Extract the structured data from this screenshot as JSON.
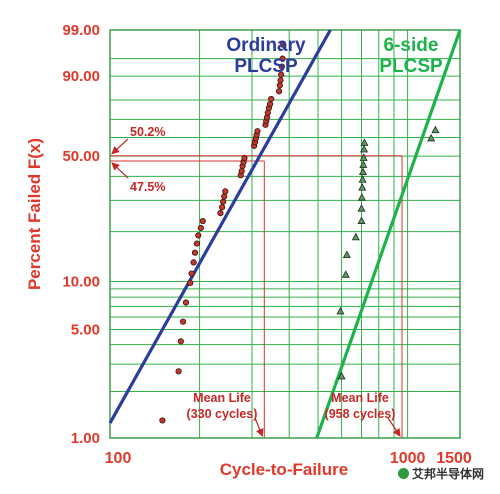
{
  "chart_data": {
    "type": "scatter",
    "title": "",
    "xlabel": "Cycle-to-Failure",
    "ylabel": "Percent Failed F(x)",
    "x_scale": "log",
    "y_scale": "weibull",
    "xlim": [
      100,
      1500
    ],
    "ylim": [
      1,
      99
    ],
    "x_ticks": [
      {
        "value": 100,
        "label": "100"
      },
      {
        "value": 1000,
        "label": "1000"
      },
      {
        "value": 1500,
        "label": "1500"
      }
    ],
    "y_ticks": [
      {
        "value": 1,
        "label": "1.00"
      },
      {
        "value": 5,
        "label": "5.00"
      },
      {
        "value": 10,
        "label": "10.00"
      },
      {
        "value": 50,
        "label": "50.00"
      },
      {
        "value": 90,
        "label": "90.00"
      },
      {
        "value": 99,
        "label": "99.00"
      }
    ],
    "grid": true,
    "x_grid": [
      100,
      200,
      300,
      400,
      500,
      600,
      700,
      800,
      900,
      1000,
      1500
    ],
    "y_grid": [
      1,
      2,
      3,
      4,
      5,
      6,
      7,
      8,
      9,
      10,
      20,
      30,
      40,
      50,
      60,
      70,
      80,
      90,
      95,
      99
    ],
    "series": [
      {
        "name": "Ordinary PLCSP",
        "name_lines": [
          "Ordinary",
          "PLCSP"
        ],
        "color": "#2b3c9b",
        "marker": "circle",
        "marker_fill": "#c0392b",
        "points": [
          [
            150,
            1.3
          ],
          [
            170,
            2.7
          ],
          [
            173,
            4.2
          ],
          [
            176,
            5.6
          ],
          [
            180,
            7.4
          ],
          [
            186,
            9.8
          ],
          [
            188,
            11.2
          ],
          [
            191,
            13.1
          ],
          [
            193,
            15.0
          ],
          [
            196,
            17.0
          ],
          [
            198,
            19.0
          ],
          [
            202,
            21.0
          ],
          [
            205,
            23.0
          ],
          [
            235,
            25.5
          ],
          [
            238,
            27.5
          ],
          [
            240,
            29.5
          ],
          [
            242,
            31.5
          ],
          [
            244,
            33.5
          ],
          [
            275,
            40.5
          ],
          [
            277,
            42.5
          ],
          [
            279,
            45.0
          ],
          [
            281,
            47.0
          ],
          [
            283,
            49.0
          ],
          [
            305,
            55.5
          ],
          [
            307,
            57.5
          ],
          [
            309,
            59.5
          ],
          [
            311,
            61.5
          ],
          [
            313,
            63.5
          ],
          [
            333,
            67.0
          ],
          [
            335,
            69.0
          ],
          [
            337,
            71.0
          ],
          [
            339,
            73.5
          ],
          [
            342,
            76.0
          ],
          [
            345,
            78.0
          ],
          [
            348,
            80.5
          ],
          [
            370,
            84.0
          ],
          [
            372,
            86.5
          ],
          [
            374,
            88.5
          ],
          [
            376,
            90.5
          ],
          [
            378,
            93.0
          ],
          [
            380,
            95.0
          ],
          [
            382,
            97.5
          ]
        ],
        "fit_line": [
          [
            100,
            1.25
          ],
          [
            550,
            99
          ]
        ],
        "mean_life": 330,
        "mean_life_label": [
          "Mean Life",
          "(330 cycles)"
        ]
      },
      {
        "name": "6-side PLCSP",
        "name_lines": [
          "6-side",
          "PLCSP"
        ],
        "color": "#1bb34a",
        "marker": "triangle",
        "marker_fill": "#5e9b63",
        "points": [
          [
            600,
            2.5
          ],
          [
            595,
            6.5
          ],
          [
            620,
            11.0
          ],
          [
            625,
            14.5
          ],
          [
            670,
            18.5
          ],
          [
            700,
            23.0
          ],
          [
            700,
            27.0
          ],
          [
            702,
            31.0
          ],
          [
            704,
            35.0
          ],
          [
            706,
            38.5
          ],
          [
            708,
            42.0
          ],
          [
            710,
            45.5
          ],
          [
            712,
            49.0
          ],
          [
            714,
            53.5
          ],
          [
            716,
            57.0
          ],
          [
            1200,
            59.5
          ],
          [
            1240,
            64.0
          ]
        ],
        "fit_line": [
          [
            495,
            1
          ],
          [
            1500,
            99
          ]
        ],
        "mean_life": 958,
        "mean_life_label": [
          "Mean Life",
          "(958 cycles)"
        ]
      }
    ],
    "reference_lines": [
      {
        "percent": 50.2,
        "label": "50.2%",
        "cycles": 958
      },
      {
        "percent": 47.5,
        "label": "47.5%",
        "cycles": 330
      }
    ]
  },
  "watermark": "艾邦半导体网"
}
